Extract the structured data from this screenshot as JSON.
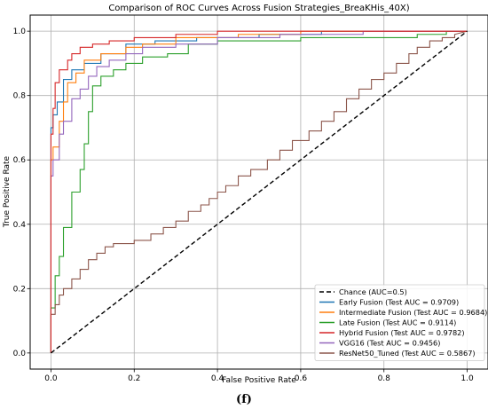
{
  "chart_data": {
    "type": "line",
    "title": "Comparison of ROC Curves Across Fusion Strategies_BreaKHis_40X)",
    "xlabel": "False Positive Rate",
    "ylabel": "True Positive Rate",
    "xlim": [
      -0.05,
      1.05
    ],
    "ylim": [
      -0.05,
      1.05
    ],
    "xticks": [
      0.0,
      0.2,
      0.4,
      0.6,
      0.8,
      1.0
    ],
    "yticks": [
      0.0,
      0.2,
      0.4,
      0.6,
      0.8,
      1.0
    ],
    "xtick_labels": [
      "0.0",
      "0.2",
      "0.4",
      "0.6",
      "0.8",
      "1.0"
    ],
    "ytick_labels": [
      "0.0",
      "0.2",
      "0.4",
      "0.6",
      "0.8",
      "1.0"
    ],
    "grid": true,
    "legend_position": "lower-right",
    "caption": "(f)",
    "series": [
      {
        "name": "Chance (AUC=0.5)",
        "color": "#000000",
        "dashed": true,
        "x": [
          0,
          1
        ],
        "y": [
          0,
          1
        ]
      },
      {
        "name": "Early Fusion (Test AUC = 0.9709)",
        "color": "#1f77b4",
        "x": [
          0,
          0,
          0.005,
          0.005,
          0.015,
          0.015,
          0.03,
          0.03,
          0.05,
          0.05,
          0.08,
          0.08,
          0.12,
          0.12,
          0.18,
          0.18,
          0.25,
          0.25,
          0.35,
          0.35,
          0.5,
          0.5,
          0.65,
          0.65,
          1
        ],
        "y": [
          0,
          0.7,
          0.7,
          0.74,
          0.74,
          0.78,
          0.78,
          0.85,
          0.85,
          0.88,
          0.88,
          0.9,
          0.9,
          0.93,
          0.93,
          0.96,
          0.96,
          0.97,
          0.97,
          0.98,
          0.98,
          0.99,
          0.99,
          1.0,
          1.0
        ]
      },
      {
        "name": "Intermediate Fusion (Test AUC = 0.9684)",
        "color": "#ff7f0e",
        "x": [
          0,
          0,
          0.005,
          0.005,
          0.02,
          0.02,
          0.03,
          0.03,
          0.04,
          0.04,
          0.06,
          0.06,
          0.08,
          0.08,
          0.12,
          0.12,
          0.18,
          0.18,
          0.22,
          0.22,
          0.3,
          0.3,
          0.45,
          0.45,
          0.6,
          0.6,
          1
        ],
        "y": [
          0,
          0.6,
          0.6,
          0.64,
          0.64,
          0.72,
          0.72,
          0.78,
          0.78,
          0.84,
          0.84,
          0.87,
          0.87,
          0.91,
          0.91,
          0.93,
          0.93,
          0.95,
          0.95,
          0.96,
          0.96,
          0.98,
          0.98,
          0.99,
          0.99,
          1.0,
          1.0
        ]
      },
      {
        "name": "Late Fusion (Test AUC = 0.9114)",
        "color": "#2ca02c",
        "x": [
          0,
          0,
          0.01,
          0.01,
          0.02,
          0.02,
          0.03,
          0.03,
          0.05,
          0.05,
          0.07,
          0.07,
          0.08,
          0.08,
          0.09,
          0.09,
          0.1,
          0.1,
          0.12,
          0.12,
          0.15,
          0.15,
          0.18,
          0.18,
          0.22,
          0.22,
          0.28,
          0.28,
          0.33,
          0.33,
          0.4,
          0.4,
          0.6,
          0.6,
          0.88,
          0.88,
          0.95,
          0.95,
          1
        ],
        "y": [
          0,
          0.14,
          0.14,
          0.24,
          0.24,
          0.3,
          0.3,
          0.39,
          0.39,
          0.5,
          0.5,
          0.57,
          0.57,
          0.65,
          0.65,
          0.75,
          0.75,
          0.83,
          0.83,
          0.86,
          0.86,
          0.88,
          0.88,
          0.9,
          0.9,
          0.92,
          0.92,
          0.93,
          0.93,
          0.96,
          0.96,
          0.97,
          0.97,
          0.98,
          0.98,
          0.99,
          0.99,
          1.0,
          1.0
        ]
      },
      {
        "name": "Hybrid Fusion (Test AUC = 0.9782)",
        "color": "#d62728",
        "x": [
          0,
          0,
          0.005,
          0.005,
          0.01,
          0.01,
          0.02,
          0.02,
          0.04,
          0.04,
          0.05,
          0.05,
          0.07,
          0.07,
          0.1,
          0.1,
          0.14,
          0.14,
          0.2,
          0.2,
          0.3,
          0.3,
          0.4,
          0.4,
          1
        ],
        "y": [
          0,
          0.68,
          0.68,
          0.76,
          0.76,
          0.84,
          0.84,
          0.88,
          0.88,
          0.91,
          0.91,
          0.93,
          0.93,
          0.95,
          0.95,
          0.96,
          0.96,
          0.97,
          0.97,
          0.98,
          0.98,
          0.99,
          0.99,
          1.0,
          1.0
        ]
      },
      {
        "name": "VGG16 (Test AUC = 0.9456)",
        "color": "#9467bd",
        "x": [
          0,
          0,
          0.005,
          0.005,
          0.02,
          0.02,
          0.03,
          0.03,
          0.05,
          0.05,
          0.07,
          0.07,
          0.09,
          0.09,
          0.11,
          0.11,
          0.14,
          0.14,
          0.18,
          0.18,
          0.22,
          0.22,
          0.3,
          0.3,
          0.4,
          0.4,
          0.55,
          0.55,
          0.75,
          0.75,
          1
        ],
        "y": [
          0,
          0.55,
          0.55,
          0.6,
          0.6,
          0.68,
          0.68,
          0.72,
          0.72,
          0.79,
          0.79,
          0.82,
          0.82,
          0.86,
          0.86,
          0.89,
          0.89,
          0.91,
          0.91,
          0.93,
          0.93,
          0.95,
          0.95,
          0.96,
          0.96,
          0.98,
          0.98,
          0.99,
          0.99,
          1.0,
          1.0
        ]
      },
      {
        "name": "ResNet50_Tuned (Test AUC = 0.5867)",
        "color": "#8c564b",
        "x": [
          0,
          0,
          0.01,
          0.01,
          0.02,
          0.02,
          0.03,
          0.03,
          0.05,
          0.05,
          0.07,
          0.07,
          0.09,
          0.09,
          0.11,
          0.11,
          0.13,
          0.13,
          0.15,
          0.15,
          0.2,
          0.2,
          0.24,
          0.24,
          0.27,
          0.27,
          0.3,
          0.3,
          0.33,
          0.33,
          0.36,
          0.36,
          0.38,
          0.38,
          0.4,
          0.4,
          0.42,
          0.42,
          0.45,
          0.45,
          0.48,
          0.48,
          0.52,
          0.52,
          0.55,
          0.55,
          0.58,
          0.58,
          0.62,
          0.62,
          0.65,
          0.65,
          0.68,
          0.68,
          0.71,
          0.71,
          0.74,
          0.74,
          0.77,
          0.77,
          0.8,
          0.8,
          0.83,
          0.83,
          0.86,
          0.86,
          0.88,
          0.88,
          0.91,
          0.91,
          0.94,
          0.94,
          0.97,
          0.97,
          1
        ],
        "y": [
          0,
          0.12,
          0.12,
          0.15,
          0.15,
          0.18,
          0.18,
          0.2,
          0.2,
          0.23,
          0.23,
          0.26,
          0.26,
          0.29,
          0.29,
          0.31,
          0.31,
          0.33,
          0.33,
          0.34,
          0.34,
          0.35,
          0.35,
          0.37,
          0.37,
          0.39,
          0.39,
          0.41,
          0.41,
          0.44,
          0.44,
          0.46,
          0.46,
          0.48,
          0.48,
          0.5,
          0.5,
          0.52,
          0.52,
          0.55,
          0.55,
          0.57,
          0.57,
          0.6,
          0.6,
          0.63,
          0.63,
          0.66,
          0.66,
          0.69,
          0.69,
          0.72,
          0.72,
          0.75,
          0.75,
          0.79,
          0.79,
          0.82,
          0.82,
          0.85,
          0.85,
          0.87,
          0.87,
          0.9,
          0.9,
          0.93,
          0.93,
          0.95,
          0.95,
          0.97,
          0.97,
          0.98,
          0.98,
          0.99,
          1.0
        ]
      }
    ]
  }
}
